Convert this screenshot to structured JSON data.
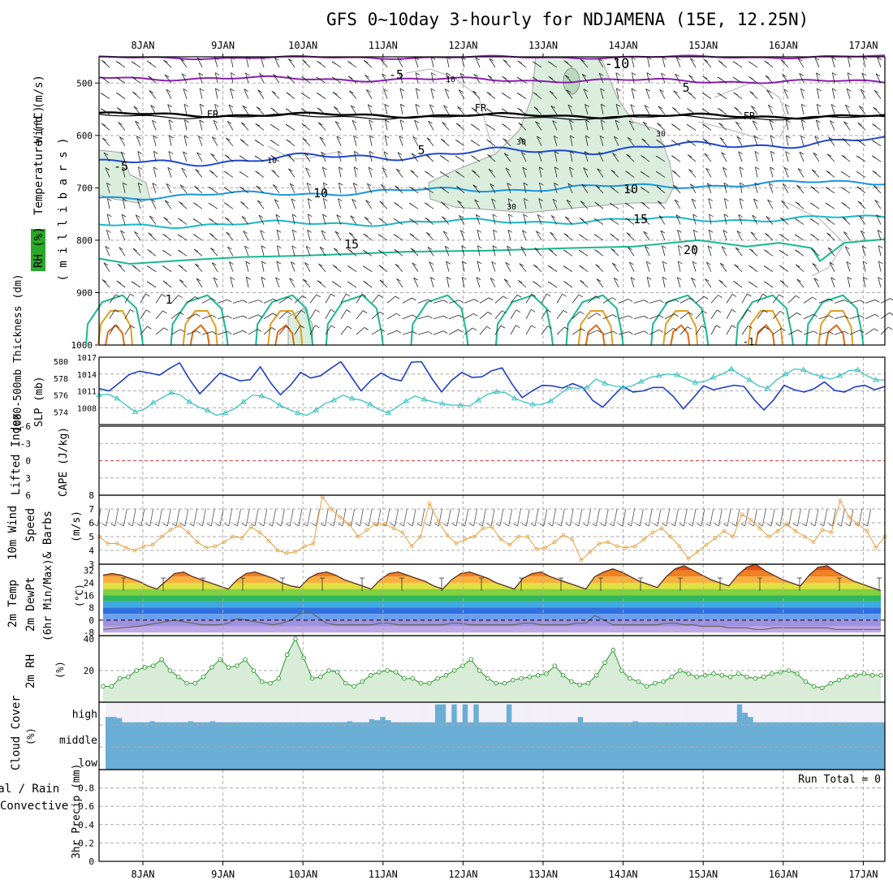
{
  "title": "GFS 0~10day 3-hourly for NDJAMENA (15E, 12.25N)",
  "colors": {
    "purple": "#8b1fb0",
    "black": "#000000",
    "blue": "#1f48d0",
    "skyblue": "#1a94e0",
    "cyan": "#1ab8c8",
    "green": "#18b890",
    "gold": "#e0a020",
    "orange": "#e06a10",
    "rh_fill": "#dbeedd",
    "slp": "#1f3fc8",
    "thick": "#30c0c0",
    "wind10": "#e8a040",
    "rh2m": "#2a9a2a",
    "cloud": "#6aaed6",
    "cloud_gap": "#f4f0f8"
  },
  "dates": [
    "8JAN",
    "9JAN",
    "10JAN",
    "11JAN",
    "12JAN",
    "13JAN",
    "14JAN",
    "15JAN",
    "16JAN",
    "17JAN"
  ],
  "panels": {
    "upper_air": {
      "ylabels": [
        {
          "text": "Wind (m/s)",
          "color": "#000000"
        },
        {
          "text": "Temperature (°C)",
          "color": "#ff6a00"
        },
        {
          "text": "RH (%)",
          "color": "#2a9a2a"
        }
      ],
      "axis_title": "( m i l l i b a r s )",
      "pressure_ticks": [
        "500",
        "600",
        "700",
        "800",
        "900",
        "1000"
      ],
      "isotherm_labels": [
        "-10",
        "-5",
        "10",
        "5",
        "FR",
        "FR",
        "FR",
        "-5",
        "5",
        "10",
        "10",
        "15",
        "15",
        "20",
        "10",
        "30",
        "30",
        "30",
        "1",
        "-1"
      ]
    },
    "slp": {
      "left_label": "1000-500mb Thickness (dm)",
      "right_label": "SLP (mb)",
      "thickness_ticks": [
        "580",
        "578",
        "576",
        "574"
      ],
      "slp_ticks": [
        "1017",
        "1014",
        "1011",
        "1008"
      ]
    },
    "li": {
      "left_label": "Lifted Index",
      "right_label": "CAPE (J/kg)",
      "ticks": [
        "-6",
        "-3",
        "0",
        "3",
        "6"
      ]
    },
    "wind10": {
      "label_1": "10m Wind",
      "label_2": "Speed",
      "label_3": "& Barbs",
      "units": "(m/s)",
      "ticks": [
        "8",
        "7",
        "6",
        "5",
        "4",
        "3"
      ]
    },
    "temp": {
      "label_1": "2m Temp",
      "label_2": "2m DewPt",
      "label_3": "(6hr Min/Max)",
      "units": "(°C)",
      "ticks": [
        "32",
        "24",
        "16",
        "8",
        "0",
        "-8"
      ]
    },
    "rh": {
      "label": "2m RH",
      "units": "(%)",
      "ticks": [
        "40",
        "20"
      ]
    },
    "cloud": {
      "label": "Cloud Cover",
      "units": "(%)",
      "levels": [
        "high",
        "middle",
        "low"
      ]
    },
    "precip": {
      "label_1": "Total / Rain",
      "label_2": "Convective",
      "label_3": "3hr Precip (mm)",
      "ticks": [
        "0.8",
        "0.6",
        "0.4",
        "0.2",
        "0"
      ],
      "run_total": "Run Total = 0"
    }
  },
  "chart_data": [
    {
      "type": "line",
      "name": "SLP (mb)",
      "x": [
        "7JAN12",
        "7JAN15",
        "7JAN18",
        "7JAN21",
        "8JAN00",
        "8JAN03",
        "8JAN06",
        "8JAN09",
        "8JAN12",
        "8JAN15",
        "8JAN18",
        "8JAN21",
        "9JAN00",
        "9JAN03",
        "9JAN06",
        "9JAN09",
        "9JAN12",
        "9JAN15",
        "9JAN18",
        "9JAN21",
        "10JAN00",
        "10JAN03",
        "10JAN06",
        "10JAN09",
        "10JAN12",
        "10JAN15",
        "10JAN18",
        "10JAN21",
        "11JAN00",
        "11JAN03",
        "11JAN06",
        "11JAN09",
        "11JAN12",
        "11JAN15",
        "11JAN18",
        "11JAN21",
        "12JAN00",
        "12JAN03",
        "12JAN06",
        "12JAN09",
        "12JAN12",
        "12JAN15",
        "12JAN18",
        "12JAN21",
        "13JAN00",
        "13JAN03",
        "13JAN06",
        "13JAN09",
        "13JAN12",
        "13JAN15",
        "13JAN18",
        "13JAN21",
        "14JAN00",
        "14JAN03",
        "14JAN06",
        "14JAN09",
        "14JAN12",
        "14JAN15",
        "14JAN18",
        "14JAN21",
        "15JAN00",
        "15JAN03",
        "15JAN06",
        "15JAN09",
        "15JAN12",
        "15JAN15",
        "15JAN18",
        "15JAN21",
        "16JAN00",
        "16JAN03",
        "16JAN06",
        "16JAN09",
        "16JAN12",
        "16JAN15",
        "16JAN18",
        "16JAN21",
        "17JAN00",
        "17JAN03",
        "17JAN06"
      ],
      "values": [
        1011.4,
        1011.0,
        1012.4,
        1013.9,
        1014.5,
        1014.2,
        1013.8,
        1015.0,
        1016.0,
        1013.0,
        1010.5,
        1012.3,
        1014.2,
        1013.5,
        1012.8,
        1013.0,
        1015.3,
        1012.5,
        1010.3,
        1012.0,
        1014.3,
        1013.3,
        1013.7,
        1015.0,
        1016.2,
        1013.6,
        1011.0,
        1012.9,
        1014.2,
        1013.2,
        1012.8,
        1016.1,
        1016.2,
        1013.3,
        1010.8,
        1012.9,
        1014.3,
        1013.4,
        1013.5,
        1014.6,
        1015.1,
        1012.2,
        1009.8,
        1011.0,
        1012.0,
        1011.9,
        1011.5,
        1012.3,
        1011.6,
        1009.3,
        1008.1,
        1010.0,
        1011.8,
        1010.8,
        1011.0,
        1011.6,
        1011.6,
        1010.0,
        1007.8,
        1009.8,
        1011.9,
        1011.2,
        1011.6,
        1012.0,
        1011.8,
        1009.5,
        1007.6,
        1009.5,
        1012.0,
        1011.2,
        1010.8,
        1011.4,
        1012.6,
        1011.1,
        1010.8,
        1011.7,
        1012.0,
        1011.2,
        1011.8
      ]
    },
    {
      "type": "line",
      "name": "1000-500mb Thickness (dm)",
      "values": [
        576.0,
        576.1,
        575.6,
        574.8,
        574.0,
        574.3,
        575.1,
        575.7,
        576.3,
        576.0,
        575.2,
        574.6,
        574.2,
        573.6,
        573.9,
        574.4,
        575.2,
        576.0,
        575.9,
        575.5,
        574.8,
        574.3,
        573.9,
        573.6,
        574.2,
        575.0,
        575.4,
        576.0,
        575.6,
        575.4,
        574.9,
        574.3,
        573.9,
        574.6,
        575.3,
        575.9,
        575.5,
        575.2,
        575.0,
        574.8,
        574.8,
        574.7,
        575.4,
        576.1,
        576.4,
        576.3,
        575.6,
        575.2,
        574.9,
        574.9,
        575.3,
        576.1,
        576.9,
        576.8,
        576.9,
        577.9,
        577.4,
        577.1,
        576.9,
        577.1,
        577.6,
        578.1,
        578.3,
        578.5,
        578.4,
        577.9,
        577.5,
        577.6,
        578.1,
        578.5,
        579.1,
        578.4,
        577.8,
        577.1,
        576.8,
        577.8,
        578.5,
        579.1,
        579.0,
        578.5,
        578.2,
        577.9,
        578.3,
        578.9,
        579.0,
        578.3,
        577.8,
        577.8
      ]
    },
    {
      "type": "line",
      "name": "10m Wind Speed (m/s)",
      "values": [
        5.0,
        4.5,
        4.5,
        4.2,
        4.0,
        4.3,
        4.4,
        5.0,
        5.5,
        5.8,
        5.3,
        4.6,
        4.2,
        4.3,
        4.6,
        5.0,
        4.9,
        5.7,
        5.3,
        4.7,
        4.0,
        3.8,
        3.9,
        4.3,
        4.5,
        7.9,
        7.0,
        6.4,
        5.9,
        5.0,
        5.5,
        5.9,
        5.9,
        5.6,
        5.3,
        4.3,
        5.0,
        7.4,
        6.1,
        5.1,
        4.5,
        4.8,
        5.0,
        5.6,
        5.7,
        4.8,
        4.4,
        5.0,
        5.0,
        4.1,
        4.2,
        4.6,
        5.1,
        4.8,
        3.3,
        3.9,
        4.5,
        4.6,
        4.3,
        4.2,
        4.3,
        4.8,
        5.3,
        5.6,
        5.0,
        4.3,
        3.4,
        3.9,
        4.4,
        4.9,
        5.4,
        5.0,
        6.6,
        6.2,
        5.6,
        5.0,
        5.4,
        5.9,
        5.4,
        5.0,
        4.6,
        5.5,
        5.3,
        7.6,
        6.4,
        5.9,
        5.4,
        4.2,
        5.0
      ]
    },
    {
      "type": "area",
      "name": "2m Temp (°C)",
      "values": [
        29,
        30,
        29,
        27,
        25,
        22,
        20,
        25,
        30,
        31,
        28,
        26,
        24,
        22,
        20,
        26,
        30,
        31,
        29,
        27,
        24,
        22,
        21,
        27,
        30,
        31,
        29,
        26,
        24,
        22,
        20,
        26,
        30,
        31,
        29,
        27,
        25,
        22,
        20,
        26,
        30,
        31,
        29,
        27,
        24,
        22,
        20,
        27,
        30,
        31,
        28,
        26,
        24,
        22,
        20,
        28,
        31,
        33,
        31,
        28,
        25,
        23,
        21,
        28,
        33,
        35,
        32,
        29,
        26,
        24,
        22,
        29,
        34,
        36,
        32,
        29,
        26,
        24,
        22,
        29,
        34,
        35,
        31,
        28,
        25,
        23,
        21,
        19
      ]
    },
    {
      "type": "area",
      "name": "2m DewPt (°C)",
      "values": [
        -6,
        -5.5,
        -5,
        -4.5,
        -4,
        -3,
        -2,
        -1,
        0,
        -1,
        -2,
        -3,
        -3,
        -3,
        -2,
        1,
        0,
        -1,
        -2,
        -3,
        -2,
        0,
        4,
        6,
        2,
        -2,
        -3,
        -3,
        -3,
        -3,
        -3,
        -2,
        -2,
        -3,
        -3,
        -3,
        -3,
        -3,
        -3,
        -2,
        -2,
        -3,
        -3,
        -3,
        -3,
        -3,
        -3,
        -2,
        -2,
        -3,
        -3,
        -3,
        -3,
        -2,
        -2,
        3,
        0,
        -3,
        -3,
        -3,
        -3,
        -3,
        -3,
        -2,
        -2,
        -3,
        -3,
        -4,
        -4,
        -4,
        -5,
        -5,
        -5,
        -6,
        -6,
        -5,
        -5,
        -5,
        -5,
        -5,
        -5,
        -5,
        -6,
        -6,
        -6,
        -6,
        -6,
        -6
      ]
    },
    {
      "type": "area",
      "name": "2m RH (%)",
      "values": [
        10,
        10,
        15,
        16,
        20,
        22,
        23,
        27,
        20,
        16,
        12,
        12,
        16,
        22,
        27,
        22,
        23,
        27,
        20,
        13,
        12,
        15,
        30,
        40,
        28,
        15,
        16,
        20,
        19,
        12,
        10,
        13,
        17,
        19,
        20,
        19,
        15,
        15,
        12,
        12,
        15,
        17,
        20,
        23,
        27,
        20,
        15,
        12,
        12,
        14,
        15,
        16,
        17,
        18,
        23,
        17,
        13,
        11,
        12,
        17,
        25,
        33,
        20,
        15,
        13,
        10,
        12,
        13,
        16,
        20,
        18,
        16,
        17,
        18,
        17,
        16,
        18,
        16,
        15,
        16,
        18,
        19,
        20,
        18,
        13,
        10,
        9,
        12,
        14,
        16,
        17,
        18,
        17,
        17
      ]
    },
    {
      "type": "bar",
      "name": "Cloud Cover high (%)",
      "values": [
        30,
        30,
        25,
        5,
        5,
        5,
        5,
        5,
        10,
        5,
        5,
        5,
        5,
        5,
        5,
        10,
        5,
        5,
        5,
        10,
        5,
        5,
        5,
        5,
        5,
        5,
        5,
        5,
        5,
        5,
        5,
        5,
        5,
        5,
        5,
        5,
        5,
        5,
        5,
        5,
        5,
        5,
        5,
        5,
        10,
        5,
        5,
        5,
        20,
        15,
        30,
        15,
        5,
        5,
        5,
        5,
        5,
        5,
        5,
        5,
        90,
        90,
        5,
        90,
        5,
        90,
        5,
        90,
        5,
        5,
        5,
        5,
        5,
        90,
        5,
        5,
        5,
        5,
        5,
        5,
        5,
        5,
        5,
        5,
        5,
        5,
        30,
        5,
        5,
        5,
        5,
        5,
        5,
        5,
        5,
        5,
        10,
        5,
        5,
        5,
        5,
        5,
        5,
        5,
        5,
        5,
        5,
        5,
        5,
        5,
        5,
        5,
        5,
        5,
        5,
        90,
        50,
        30,
        5,
        5,
        5,
        5,
        5,
        5,
        5,
        5,
        5,
        5,
        5,
        5,
        5,
        5,
        5,
        5,
        5,
        5,
        5,
        5,
        5,
        5,
        5,
        5
      ]
    },
    {
      "type": "bar",
      "name": "3hr Precip (mm)",
      "values": [
        0,
        0,
        0,
        0,
        0,
        0,
        0,
        0,
        0,
        0,
        0,
        0,
        0,
        0,
        0,
        0,
        0,
        0,
        0,
        0,
        0,
        0,
        0,
        0,
        0,
        0,
        0,
        0,
        0,
        0,
        0,
        0,
        0,
        0,
        0,
        0,
        0,
        0,
        0,
        0,
        0,
        0,
        0,
        0,
        0,
        0,
        0,
        0,
        0,
        0,
        0,
        0,
        0,
        0,
        0,
        0,
        0,
        0,
        0,
        0,
        0,
        0,
        0,
        0,
        0,
        0,
        0,
        0,
        0,
        0,
        0,
        0,
        0,
        0,
        0,
        0,
        0,
        0,
        0,
        0
      ],
      "ylim": [
        0,
        1
      ]
    }
  ]
}
